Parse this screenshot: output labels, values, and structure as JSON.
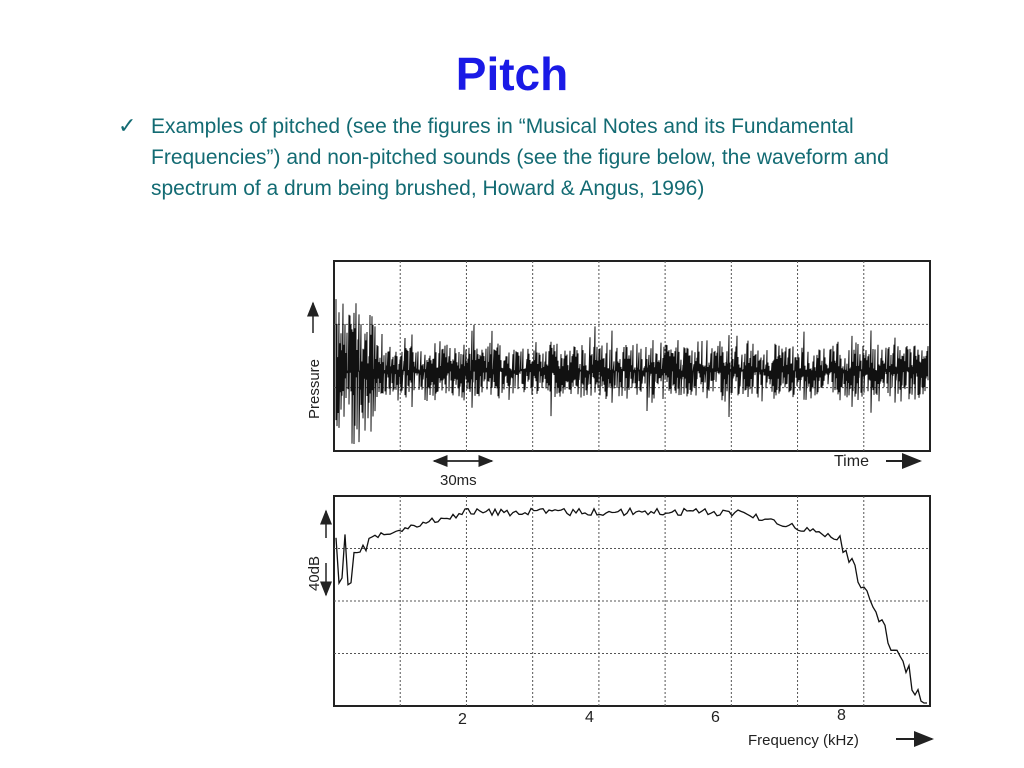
{
  "slide": {
    "title": "Pitch",
    "bullet_icon": "checkmark-icon",
    "bullet_text": "Examples of pitched (see the figures in “Musical Notes and its Fundamental Frequencies”) and non-pitched sounds (see the figure below, the waveform and spectrum of a drum being brushed, Howard & Angus, 1996)"
  },
  "figure": {
    "waveform": {
      "y_axis_label": "Pressure",
      "x_axis_label": "Time",
      "scale_bar_label": "30ms"
    },
    "spectrum": {
      "y_axis_label": "40dB",
      "x_axis_label": "Frequency (kHz)",
      "x_ticks": [
        "2",
        "4",
        "6",
        "8"
      ]
    }
  },
  "colors": {
    "title": "#1a1ae6",
    "body_text": "#136b73",
    "trace": "#111111"
  }
}
